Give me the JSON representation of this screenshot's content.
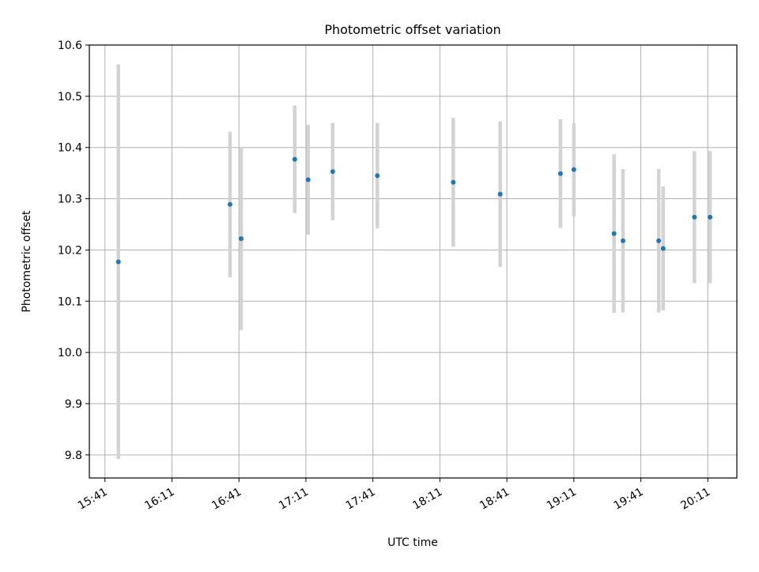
{
  "chart_data": {
    "type": "scatter",
    "title": "Photometric offset variation",
    "xlabel": "UTC time",
    "ylabel": "Photometric offset",
    "x_ticks": [
      "15:41",
      "16:11",
      "16:41",
      "17:11",
      "17:41",
      "18:11",
      "18:41",
      "19:11",
      "19:41",
      "20:11"
    ],
    "y_ticks": [
      "9.8",
      "9.9",
      "10.0",
      "10.1",
      "10.2",
      "10.3",
      "10.4",
      "10.5",
      "10.6"
    ],
    "xlim": [
      "15:34",
      "20:24"
    ],
    "ylim": [
      9.755,
      10.6
    ],
    "grid": true,
    "colors": {
      "points": "#1f77b4",
      "errorbars": "#d3d3d3",
      "grid": "#b0b0b0"
    },
    "points": [
      {
        "x": "15:47",
        "y": 10.177,
        "err": 0.385
      },
      {
        "x": "16:37",
        "y": 10.289,
        "err": 0.142
      },
      {
        "x": "16:42",
        "y": 10.222,
        "err": 0.178
      },
      {
        "x": "17:06",
        "y": 10.377,
        "err": 0.105
      },
      {
        "x": "17:12",
        "y": 10.337,
        "err": 0.107
      },
      {
        "x": "17:23",
        "y": 10.353,
        "err": 0.095
      },
      {
        "x": "17:43",
        "y": 10.345,
        "err": 0.103
      },
      {
        "x": "18:17",
        "y": 10.332,
        "err": 0.126
      },
      {
        "x": "18:38",
        "y": 10.309,
        "err": 0.142
      },
      {
        "x": "19:05",
        "y": 10.349,
        "err": 0.106
      },
      {
        "x": "19:11",
        "y": 10.357,
        "err": 0.091
      },
      {
        "x": "19:29",
        "y": 10.232,
        "err": 0.155
      },
      {
        "x": "19:33",
        "y": 10.218,
        "err": 0.14
      },
      {
        "x": "19:49",
        "y": 10.218,
        "err": 0.14
      },
      {
        "x": "19:51",
        "y": 10.203,
        "err": 0.121
      },
      {
        "x": "20:05",
        "y": 10.264,
        "err": 0.129
      },
      {
        "x": "20:12",
        "y": 10.264,
        "err": 0.129
      }
    ]
  }
}
